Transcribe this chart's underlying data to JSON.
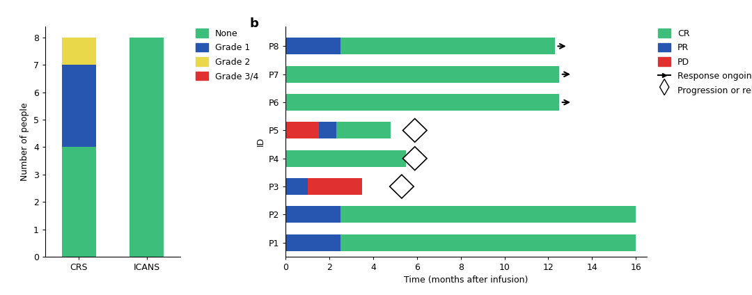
{
  "bar_a": {
    "categories": [
      "CRS",
      "ICANS"
    ],
    "none": [
      4,
      8
    ],
    "grade1": [
      3,
      0
    ],
    "grade2": [
      1,
      0
    ],
    "grade34": [
      0,
      0
    ],
    "colors": {
      "none": "#3DBE7A",
      "grade1": "#2756B0",
      "grade2": "#E8D84A",
      "grade34": "#E03030"
    },
    "ylim": [
      0,
      8.4
    ],
    "yticks": [
      0,
      1,
      2,
      3,
      4,
      5,
      6,
      7,
      8
    ],
    "ylabel": "Number of people",
    "legend_labels": [
      "None",
      "Grade 1",
      "Grade 2",
      "Grade 3/4"
    ]
  },
  "bar_b": {
    "patients": [
      "P1",
      "P2",
      "P3",
      "P4",
      "P5",
      "P6",
      "P7",
      "P8"
    ],
    "segments": [
      {
        "order": [
          "PR",
          "CR"
        ],
        "PR": 2.5,
        "CR": 13.5,
        "PD": 0,
        "arrow": true,
        "diamond": false,
        "diamond_x": null
      },
      {
        "order": [
          "PR",
          "CR"
        ],
        "PR": 2.5,
        "CR": 13.5,
        "PD": 0,
        "arrow": true,
        "diamond": false,
        "diamond_x": null
      },
      {
        "order": [
          "PR",
          "PD"
        ],
        "PR": 1.0,
        "PD": 2.5,
        "CR": 0,
        "arrow": false,
        "diamond": true,
        "diamond_x": 5.3
      },
      {
        "order": [
          "CR"
        ],
        "PR": 0,
        "PD": 0,
        "CR": 5.5,
        "arrow": false,
        "diamond": true,
        "diamond_x": 5.9
      },
      {
        "order": [
          "PD",
          "PR",
          "CR"
        ],
        "PD": 1.5,
        "PR": 0.8,
        "CR": 2.5,
        "arrow": false,
        "diamond": true,
        "diamond_x": 5.9
      },
      {
        "order": [
          "CR"
        ],
        "PR": 0,
        "PD": 0,
        "CR": 12.5,
        "arrow": true,
        "diamond": false,
        "diamond_x": null
      },
      {
        "order": [
          "CR"
        ],
        "PR": 0,
        "PD": 0,
        "CR": 12.5,
        "arrow": true,
        "diamond": false,
        "diamond_x": null
      },
      {
        "order": [
          "PR",
          "CR"
        ],
        "PR": 2.5,
        "CR": 9.8,
        "PD": 0,
        "arrow": true,
        "diamond": false,
        "diamond_x": null
      }
    ],
    "colors": {
      "CR": "#3DBE7A",
      "PR": "#2756B0",
      "PD": "#E03030"
    },
    "xlim": [
      0,
      16.5
    ],
    "xticks": [
      0,
      2,
      4,
      6,
      8,
      10,
      12,
      14,
      16
    ],
    "xlabel": "Time (months after infusion)",
    "ylabel": "ID"
  }
}
